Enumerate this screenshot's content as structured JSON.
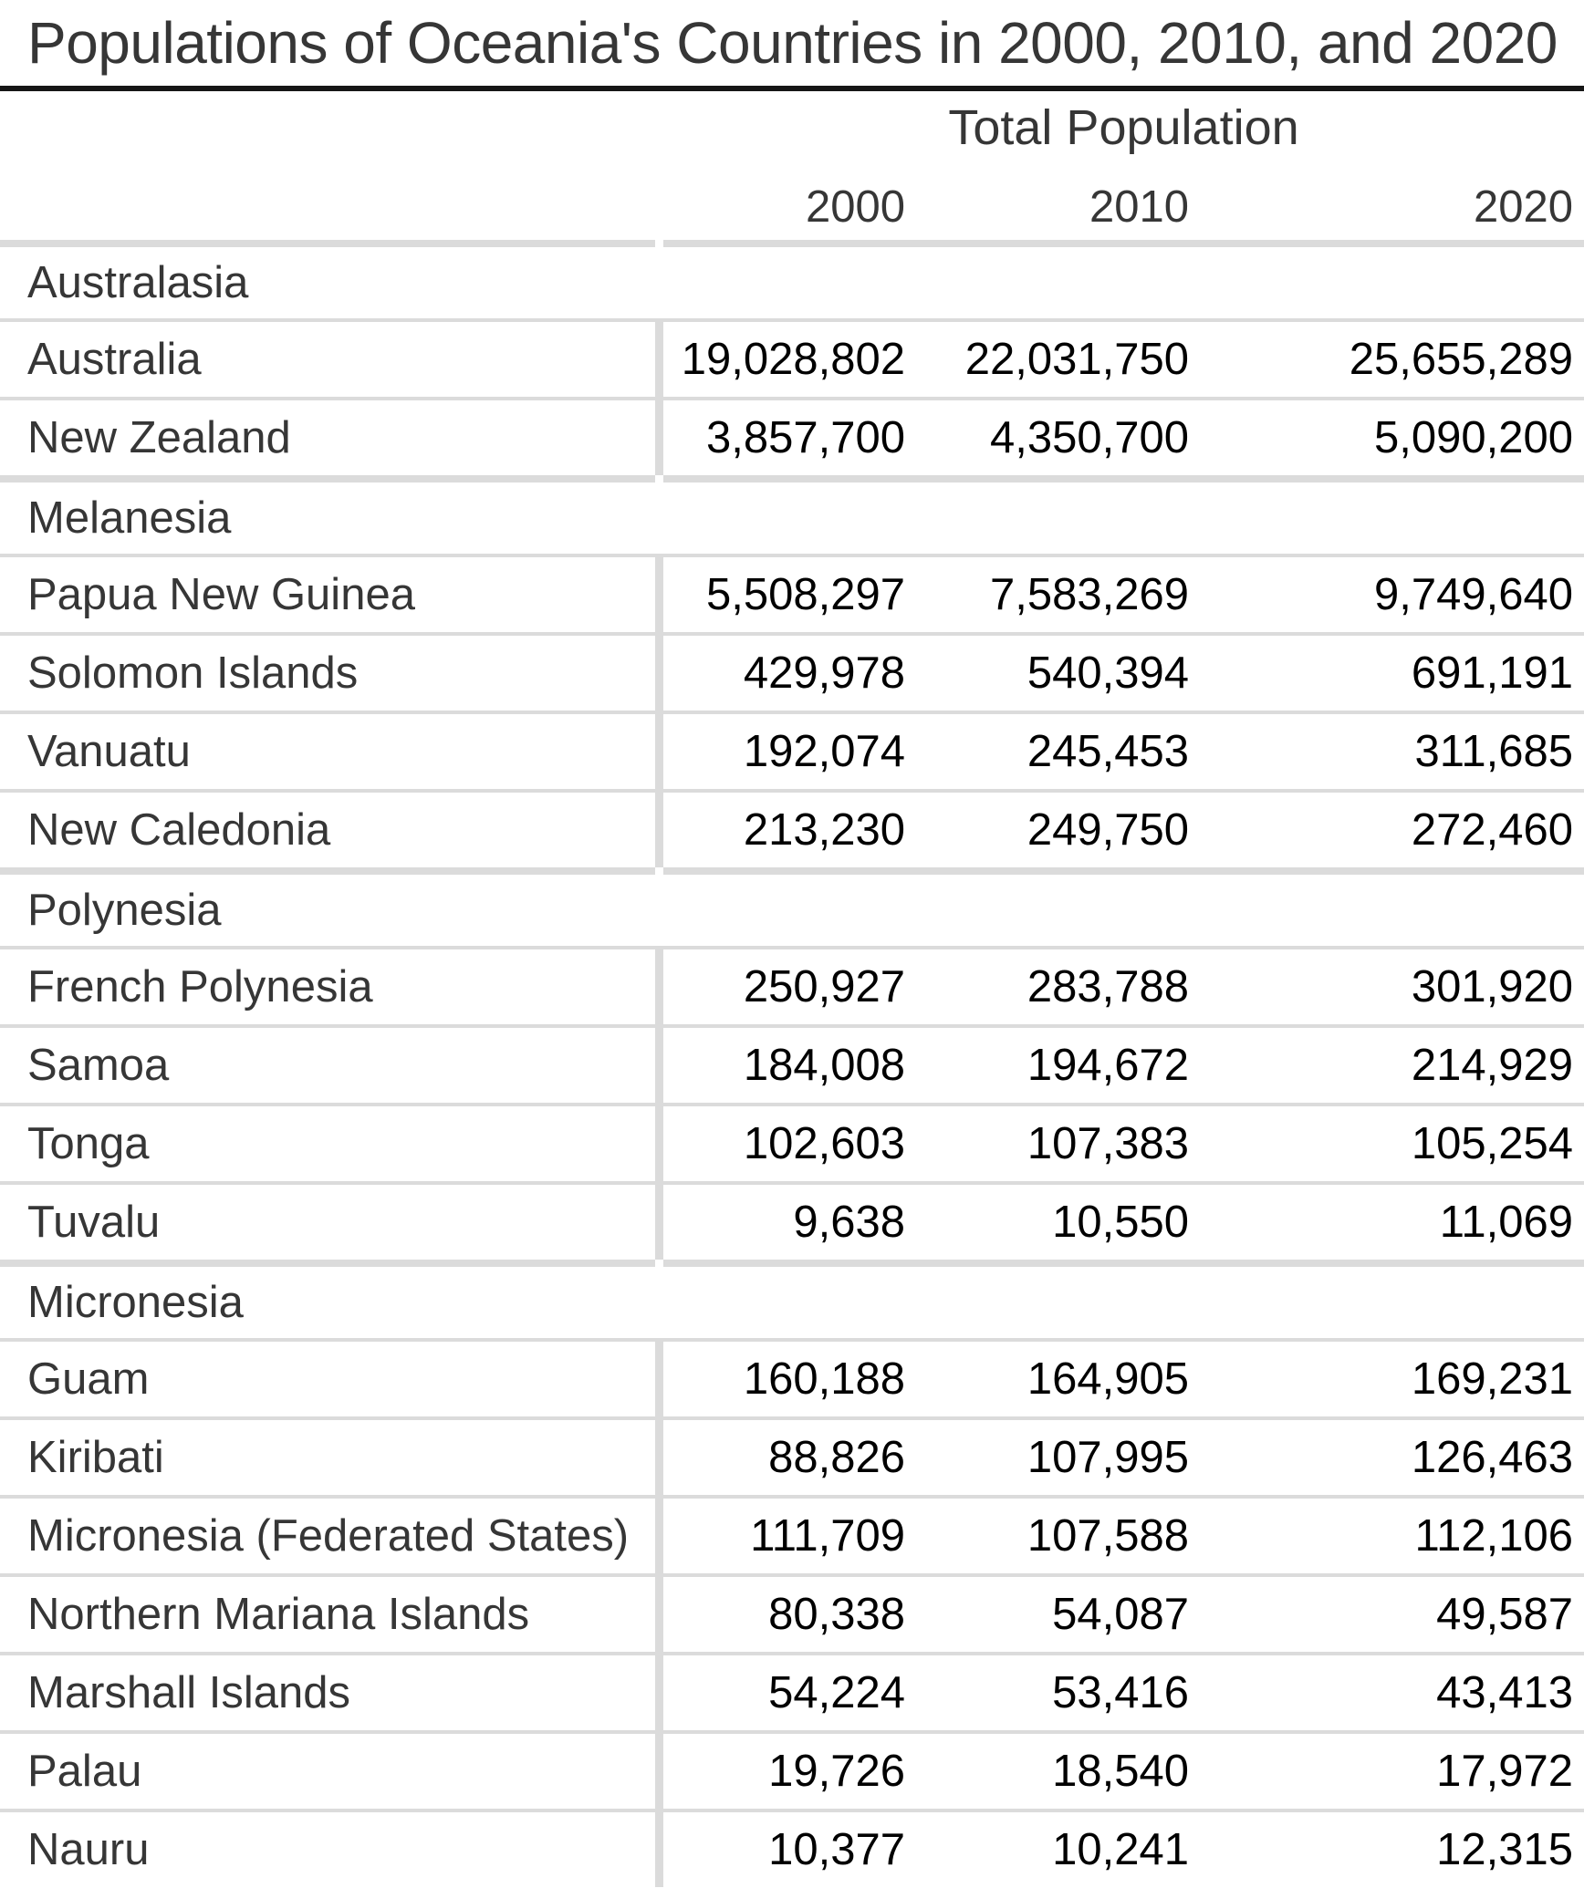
{
  "title": "Populations of Oceania's Countries in 2000, 2010, and 2020",
  "header": {
    "group_label": "Total Population",
    "year_columns": [
      "2000",
      "2010",
      "2020"
    ]
  },
  "table": {
    "sections": [
      {
        "name": "Australasia",
        "rows": [
          {
            "country": "Australia",
            "values": [
              "19,028,802",
              "22,031,750",
              "25,655,289"
            ]
          },
          {
            "country": "New Zealand",
            "values": [
              "3,857,700",
              "4,350,700",
              "5,090,200"
            ]
          }
        ]
      },
      {
        "name": "Melanesia",
        "rows": [
          {
            "country": "Papua New Guinea",
            "values": [
              "5,508,297",
              "7,583,269",
              "9,749,640"
            ]
          },
          {
            "country": "Solomon Islands",
            "values": [
              "429,978",
              "540,394",
              "691,191"
            ]
          },
          {
            "country": "Vanuatu",
            "values": [
              "192,074",
              "245,453",
              "311,685"
            ]
          },
          {
            "country": "New Caledonia",
            "values": [
              "213,230",
              "249,750",
              "272,460"
            ]
          }
        ]
      },
      {
        "name": "Polynesia",
        "rows": [
          {
            "country": "French Polynesia",
            "values": [
              "250,927",
              "283,788",
              "301,920"
            ]
          },
          {
            "country": "Samoa",
            "values": [
              "184,008",
              "194,672",
              "214,929"
            ]
          },
          {
            "country": "Tonga",
            "values": [
              "102,603",
              "107,383",
              "105,254"
            ]
          },
          {
            "country": "Tuvalu",
            "values": [
              "9,638",
              "10,550",
              "11,069"
            ]
          }
        ]
      },
      {
        "name": "Micronesia",
        "rows": [
          {
            "country": "Guam",
            "values": [
              "160,188",
              "164,905",
              "169,231"
            ]
          },
          {
            "country": "Kiribati",
            "values": [
              "88,826",
              "107,995",
              "126,463"
            ]
          },
          {
            "country": "Micronesia (Federated States)",
            "values": [
              "111,709",
              "107,588",
              "112,106"
            ]
          },
          {
            "country": "Northern Mariana Islands",
            "values": [
              "80,338",
              "54,087",
              "49,587"
            ]
          },
          {
            "country": "Marshall Islands",
            "values": [
              "54,224",
              "53,416",
              "43,413"
            ]
          },
          {
            "country": "Palau",
            "values": [
              "19,726",
              "18,540",
              "17,972"
            ]
          },
          {
            "country": "Nauru",
            "values": [
              "10,377",
              "10,241",
              "12,315"
            ]
          }
        ]
      }
    ]
  },
  "chart_data": {
    "type": "table",
    "title": "Populations of Oceania's Countries in 2000, 2010, and 2020",
    "column_group_label": "Total Population",
    "columns": [
      "2000",
      "2010",
      "2020"
    ],
    "sections": [
      {
        "name": "Australasia",
        "rows": [
          [
            "Australia",
            19028802,
            22031750,
            25655289
          ],
          [
            "New Zealand",
            3857700,
            4350700,
            5090200
          ]
        ]
      },
      {
        "name": "Melanesia",
        "rows": [
          [
            "Papua New Guinea",
            5508297,
            7583269,
            9749640
          ],
          [
            "Solomon Islands",
            429978,
            540394,
            691191
          ],
          [
            "Vanuatu",
            192074,
            245453,
            311685
          ],
          [
            "New Caledonia",
            213230,
            249750,
            272460
          ]
        ]
      },
      {
        "name": "Polynesia",
        "rows": [
          [
            "French Polynesia",
            250927,
            283788,
            301920
          ],
          [
            "Samoa",
            184008,
            194672,
            214929
          ],
          [
            "Tonga",
            102603,
            107383,
            105254
          ],
          [
            "Tuvalu",
            9638,
            10550,
            11069
          ]
        ]
      },
      {
        "name": "Micronesia",
        "rows": [
          [
            "Guam",
            160188,
            164905,
            169231
          ],
          [
            "Kiribati",
            88826,
            107995,
            126463
          ],
          [
            "Micronesia (Federated States)",
            111709,
            107588,
            112106
          ],
          [
            "Northern Mariana Islands",
            80338,
            54087,
            49587
          ],
          [
            "Marshall Islands",
            54224,
            53416,
            43413
          ],
          [
            "Palau",
            19726,
            18540,
            17972
          ],
          [
            "Nauru",
            10377,
            10241,
            12315
          ]
        ]
      }
    ]
  },
  "colors": {
    "rule_dark": "#161616",
    "rule_light": "#dbdbdb",
    "label_text": "#363636",
    "value_text": "#000000",
    "background": "#ffffff"
  }
}
